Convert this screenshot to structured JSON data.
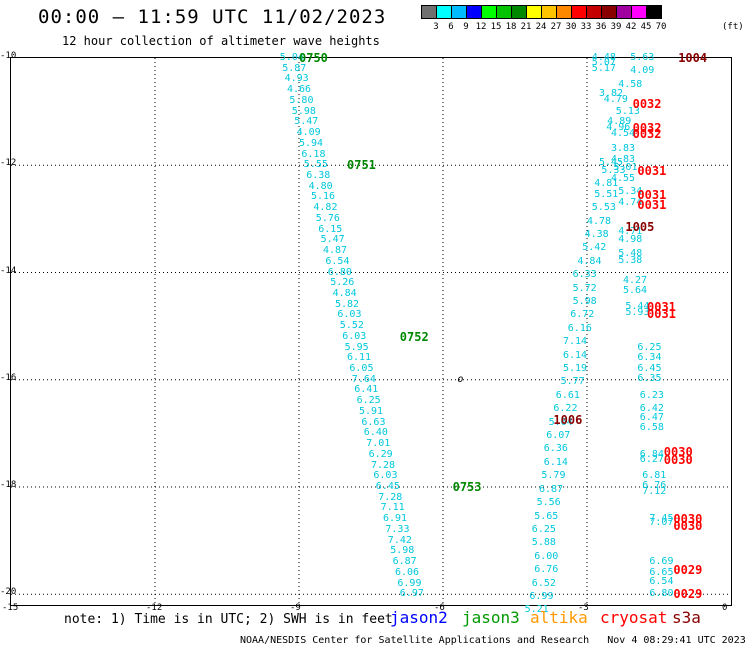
{
  "header": {
    "title": "00:00 – 11:59 UTC 11/02/2023",
    "subtitle": "12 hour collection of altimeter wave heights"
  },
  "colorbar": {
    "unit": "(ft)",
    "colors": [
      "#707070",
      "#00ffff",
      "#00bcff",
      "#0000ff",
      "#00ff00",
      "#00c400",
      "#008800",
      "#ffff00",
      "#ffc400",
      "#ff8800",
      "#ff0000",
      "#c40000",
      "#880000",
      "#a000a0",
      "#ff00ff",
      "#000000"
    ],
    "labels": [
      "3",
      "6",
      "9",
      "12",
      "15",
      "18",
      "21",
      "24",
      "27",
      "30",
      "33",
      "36",
      "39",
      "42",
      "45",
      "70"
    ]
  },
  "map": {
    "lon_ticks": [
      "-15",
      "-12",
      "-9",
      "-6",
      "-3",
      "0"
    ],
    "lat_ticks": [
      "-10",
      "-12",
      "-14",
      "-16",
      "-18",
      "-20"
    ],
    "island_label": "o",
    "observations": [
      {
        "lon": -9.4,
        "lat": -10.0,
        "v": "5.04",
        "c": "cyan"
      },
      {
        "lon": -9.35,
        "lat": -10.2,
        "v": "5.87",
        "c": "cyan"
      },
      {
        "lon": -9.3,
        "lat": -10.4,
        "v": "4.93",
        "c": "cyan"
      },
      {
        "lon": -9.25,
        "lat": -10.6,
        "v": "4.66",
        "c": "cyan"
      },
      {
        "lon": -9.2,
        "lat": -10.8,
        "v": "5.80",
        "c": "cyan"
      },
      {
        "lon": -9.15,
        "lat": -11.0,
        "v": "5.98",
        "c": "cyan"
      },
      {
        "lon": -9.1,
        "lat": -11.2,
        "v": "5.47",
        "c": "cyan"
      },
      {
        "lon": -9.05,
        "lat": -11.4,
        "v": "4.09",
        "c": "cyan"
      },
      {
        "lon": -9.0,
        "lat": -11.6,
        "v": "5.94",
        "c": "cyan"
      },
      {
        "lon": -8.95,
        "lat": -11.8,
        "v": "6.18",
        "c": "cyan"
      },
      {
        "lon": -8.9,
        "lat": -12.0,
        "v": "5.55",
        "c": "cyan"
      },
      {
        "lon": -8.85,
        "lat": -12.2,
        "v": "6.38",
        "c": "cyan"
      },
      {
        "lon": -8.8,
        "lat": -12.4,
        "v": "4.80",
        "c": "cyan"
      },
      {
        "lon": -8.75,
        "lat": -12.6,
        "v": "5.16",
        "c": "cyan"
      },
      {
        "lon": -8.7,
        "lat": -12.8,
        "v": "4.82",
        "c": "cyan"
      },
      {
        "lon": -8.65,
        "lat": -13.0,
        "v": "5.76",
        "c": "cyan"
      },
      {
        "lon": -8.6,
        "lat": -13.2,
        "v": "6.15",
        "c": "cyan"
      },
      {
        "lon": -8.55,
        "lat": -13.4,
        "v": "5.47",
        "c": "cyan"
      },
      {
        "lon": -8.5,
        "lat": -13.6,
        "v": "4.87",
        "c": "cyan"
      },
      {
        "lon": -8.45,
        "lat": -13.8,
        "v": "6.54",
        "c": "cyan"
      },
      {
        "lon": -8.4,
        "lat": -14.0,
        "v": "6.80",
        "c": "cyan"
      },
      {
        "lon": -8.35,
        "lat": -14.2,
        "v": "5.26",
        "c": "cyan"
      },
      {
        "lon": -8.3,
        "lat": -14.4,
        "v": "4.84",
        "c": "cyan"
      },
      {
        "lon": -8.25,
        "lat": -14.6,
        "v": "5.82",
        "c": "cyan"
      },
      {
        "lon": -8.2,
        "lat": -14.8,
        "v": "6.03",
        "c": "cyan"
      },
      {
        "lon": -8.15,
        "lat": -15.0,
        "v": "5.52",
        "c": "cyan"
      },
      {
        "lon": -8.1,
        "lat": -15.2,
        "v": "6.03",
        "c": "cyan"
      },
      {
        "lon": -8.05,
        "lat": -15.4,
        "v": "5.95",
        "c": "cyan"
      },
      {
        "lon": -8.0,
        "lat": -15.6,
        "v": "6.11",
        "c": "cyan"
      },
      {
        "lon": -7.95,
        "lat": -15.8,
        "v": "6.05",
        "c": "cyan"
      },
      {
        "lon": -7.9,
        "lat": -16.0,
        "v": "7.64",
        "c": "cyan"
      },
      {
        "lon": -7.85,
        "lat": -16.2,
        "v": "6.41",
        "c": "cyan"
      },
      {
        "lon": -7.8,
        "lat": -16.4,
        "v": "6.25",
        "c": "cyan"
      },
      {
        "lon": -7.75,
        "lat": -16.6,
        "v": "5.91",
        "c": "cyan"
      },
      {
        "lon": -7.7,
        "lat": -16.8,
        "v": "6.63",
        "c": "cyan"
      },
      {
        "lon": -7.65,
        "lat": -17.0,
        "v": "6.40",
        "c": "cyan"
      },
      {
        "lon": -7.6,
        "lat": -17.2,
        "v": "7.01",
        "c": "cyan"
      },
      {
        "lon": -7.55,
        "lat": -17.4,
        "v": "6.29",
        "c": "cyan"
      },
      {
        "lon": -7.5,
        "lat": -17.6,
        "v": "7.28",
        "c": "cyan"
      },
      {
        "lon": -7.45,
        "lat": -17.8,
        "v": "6.03",
        "c": "cyan"
      },
      {
        "lon": -7.4,
        "lat": -18.0,
        "v": "6.45",
        "c": "cyan"
      },
      {
        "lon": -7.35,
        "lat": -18.2,
        "v": "7.28",
        "c": "cyan"
      },
      {
        "lon": -7.3,
        "lat": -18.4,
        "v": "7.11",
        "c": "cyan"
      },
      {
        "lon": -7.25,
        "lat": -18.6,
        "v": "6.91",
        "c": "cyan"
      },
      {
        "lon": -7.2,
        "lat": -18.8,
        "v": "7.33",
        "c": "cyan"
      },
      {
        "lon": -7.15,
        "lat": -19.0,
        "v": "7.42",
        "c": "cyan"
      },
      {
        "lon": -7.1,
        "lat": -19.2,
        "v": "5.98",
        "c": "cyan"
      },
      {
        "lon": -7.05,
        "lat": -19.4,
        "v": "6.87",
        "c": "cyan"
      },
      {
        "lon": -7.0,
        "lat": -19.6,
        "v": "6.06",
        "c": "cyan"
      },
      {
        "lon": -6.95,
        "lat": -19.8,
        "v": "6.99",
        "c": "cyan"
      },
      {
        "lon": -6.9,
        "lat": -20.0,
        "v": "6.97",
        "c": "cyan"
      },
      {
        "lon": -2.9,
        "lat": -10.0,
        "v": "4.48",
        "c": "cyan"
      },
      {
        "lon": -2.9,
        "lat": -10.1,
        "v": "5.07",
        "c": "cyan"
      },
      {
        "lon": -2.9,
        "lat": -10.2,
        "v": "5.17",
        "c": "cyan"
      },
      {
        "lon": -2.1,
        "lat": -10.0,
        "v": "5.63",
        "c": "cyan"
      },
      {
        "lon": -2.1,
        "lat": -10.25,
        "v": "4.09",
        "c": "cyan"
      },
      {
        "lon": -2.35,
        "lat": -10.5,
        "v": "4.58",
        "c": "cyan"
      },
      {
        "lon": -2.75,
        "lat": -10.68,
        "v": "3.82",
        "c": "cyan"
      },
      {
        "lon": -2.65,
        "lat": -10.78,
        "v": "4.79",
        "c": "cyan"
      },
      {
        "lon": -2.4,
        "lat": -11.0,
        "v": "5.13",
        "c": "cyan"
      },
      {
        "lon": -2.58,
        "lat": -11.2,
        "v": "4.89",
        "c": "cyan"
      },
      {
        "lon": -2.6,
        "lat": -11.3,
        "v": "4.96",
        "c": "cyan"
      },
      {
        "lon": -2.5,
        "lat": -11.42,
        "v": "4.54",
        "c": "cyan"
      },
      {
        "lon": -2.5,
        "lat": -11.7,
        "v": "3.83",
        "c": "cyan"
      },
      {
        "lon": -2.5,
        "lat": -11.9,
        "v": "4.83",
        "c": "cyan"
      },
      {
        "lon": -2.75,
        "lat": -11.95,
        "v": "5.45",
        "c": "cyan"
      },
      {
        "lon": -2.7,
        "lat": -12.1,
        "v": "5.33",
        "c": "cyan"
      },
      {
        "lon": -2.45,
        "lat": -12.05,
        "v": "5.01",
        "c": "cyan"
      },
      {
        "lon": -2.5,
        "lat": -12.25,
        "v": "4.55",
        "c": "cyan"
      },
      {
        "lon": -2.85,
        "lat": -12.35,
        "v": "4.81",
        "c": "cyan"
      },
      {
        "lon": -2.85,
        "lat": -12.55,
        "v": "5.51",
        "c": "cyan"
      },
      {
        "lon": -2.35,
        "lat": -12.5,
        "v": "5.34",
        "c": "cyan"
      },
      {
        "lon": -2.35,
        "lat": -12.7,
        "v": "4.74",
        "c": "cyan"
      },
      {
        "lon": -2.9,
        "lat": -12.8,
        "v": "5.53",
        "c": "cyan"
      },
      {
        "lon": -3.0,
        "lat": -13.05,
        "v": "4.78",
        "c": "cyan"
      },
      {
        "lon": -2.35,
        "lat": -13.25,
        "v": "4.71",
        "c": "cyan"
      },
      {
        "lon": -2.35,
        "lat": -13.4,
        "v": "4.98",
        "c": "cyan"
      },
      {
        "lon": -3.05,
        "lat": -13.3,
        "v": "4.38",
        "c": "cyan"
      },
      {
        "lon": -3.1,
        "lat": -13.55,
        "v": "5.42",
        "c": "cyan"
      },
      {
        "lon": -2.35,
        "lat": -13.65,
        "v": "5.48",
        "c": "cyan"
      },
      {
        "lon": -2.35,
        "lat": -13.78,
        "v": "5.38",
        "c": "cyan"
      },
      {
        "lon": -3.2,
        "lat": -13.8,
        "v": "4.84",
        "c": "cyan"
      },
      {
        "lon": -3.3,
        "lat": -14.05,
        "v": "6.33",
        "c": "cyan"
      },
      {
        "lon": -2.25,
        "lat": -14.15,
        "v": "4.27",
        "c": "cyan"
      },
      {
        "lon": -3.3,
        "lat": -14.3,
        "v": "5.72",
        "c": "cyan"
      },
      {
        "lon": -2.25,
        "lat": -14.35,
        "v": "5.64",
        "c": "cyan"
      },
      {
        "lon": -3.3,
        "lat": -14.55,
        "v": "5.98",
        "c": "cyan"
      },
      {
        "lon": -2.2,
        "lat": -14.65,
        "v": "5.44",
        "c": "cyan"
      },
      {
        "lon": -2.2,
        "lat": -14.75,
        "v": "5.93",
        "c": "cyan"
      },
      {
        "lon": -3.35,
        "lat": -14.8,
        "v": "6.72",
        "c": "cyan"
      },
      {
        "lon": -3.4,
        "lat": -15.05,
        "v": "6.16",
        "c": "cyan"
      },
      {
        "lon": -3.5,
        "lat": -15.3,
        "v": "7.14",
        "c": "cyan"
      },
      {
        "lon": -1.95,
        "lat": -15.4,
        "v": "6.25",
        "c": "cyan"
      },
      {
        "lon": -3.5,
        "lat": -15.55,
        "v": "6.14",
        "c": "cyan"
      },
      {
        "lon": -1.95,
        "lat": -15.6,
        "v": "6.34",
        "c": "cyan"
      },
      {
        "lon": -1.95,
        "lat": -15.8,
        "v": "6.45",
        "c": "cyan"
      },
      {
        "lon": -3.5,
        "lat": -15.8,
        "v": "5.19",
        "c": "cyan"
      },
      {
        "lon": -1.95,
        "lat": -15.98,
        "v": "6.35",
        "c": "cyan"
      },
      {
        "lon": -3.55,
        "lat": -16.05,
        "v": "5.77",
        "c": "cyan"
      },
      {
        "lon": -3.65,
        "lat": -16.3,
        "v": "6.61",
        "c": "cyan"
      },
      {
        "lon": -1.9,
        "lat": -16.3,
        "v": "6.23",
        "c": "cyan"
      },
      {
        "lon": -3.7,
        "lat": -16.55,
        "v": "6.22",
        "c": "cyan"
      },
      {
        "lon": -1.9,
        "lat": -16.55,
        "v": "6.42",
        "c": "cyan"
      },
      {
        "lon": -1.9,
        "lat": -16.72,
        "v": "6.47",
        "c": "cyan"
      },
      {
        "lon": -3.8,
        "lat": -16.8,
        "v": "5.64",
        "c": "cyan"
      },
      {
        "lon": -1.9,
        "lat": -16.9,
        "v": "6.58",
        "c": "cyan"
      },
      {
        "lon": -3.85,
        "lat": -17.05,
        "v": "6.07",
        "c": "cyan"
      },
      {
        "lon": -3.9,
        "lat": -17.3,
        "v": "6.36",
        "c": "cyan"
      },
      {
        "lon": -1.9,
        "lat": -17.4,
        "v": "6.84",
        "c": "cyan"
      },
      {
        "lon": -1.9,
        "lat": -17.5,
        "v": "6.27",
        "c": "cyan"
      },
      {
        "lon": -3.9,
        "lat": -17.55,
        "v": "6.14",
        "c": "cyan"
      },
      {
        "lon": -3.95,
        "lat": -17.8,
        "v": "5.79",
        "c": "cyan"
      },
      {
        "lon": -1.85,
        "lat": -17.8,
        "v": "6.81",
        "c": "cyan"
      },
      {
        "lon": -1.85,
        "lat": -17.98,
        "v": "6.76",
        "c": "cyan"
      },
      {
        "lon": -4.0,
        "lat": -18.05,
        "v": "6.87",
        "c": "cyan"
      },
      {
        "lon": -1.85,
        "lat": -18.1,
        "v": "7.12",
        "c": "cyan"
      },
      {
        "lon": -4.05,
        "lat": -18.3,
        "v": "5.56",
        "c": "cyan"
      },
      {
        "lon": -4.1,
        "lat": -18.55,
        "v": "5.65",
        "c": "cyan"
      },
      {
        "lon": -1.7,
        "lat": -18.6,
        "v": "7.45",
        "c": "cyan"
      },
      {
        "lon": -1.7,
        "lat": -18.68,
        "v": "7.07",
        "c": "cyan"
      },
      {
        "lon": -4.15,
        "lat": -18.8,
        "v": "6.25",
        "c": "cyan"
      },
      {
        "lon": -4.15,
        "lat": -19.05,
        "v": "5.88",
        "c": "cyan"
      },
      {
        "lon": -4.1,
        "lat": -19.3,
        "v": "6.00",
        "c": "cyan"
      },
      {
        "lon": -1.7,
        "lat": -19.4,
        "v": "6.69",
        "c": "cyan"
      },
      {
        "lon": -4.1,
        "lat": -19.55,
        "v": "6.76",
        "c": "cyan"
      },
      {
        "lon": -1.7,
        "lat": -19.6,
        "v": "6.65",
        "c": "cyan"
      },
      {
        "lon": -1.7,
        "lat": -19.78,
        "v": "6.54",
        "c": "cyan"
      },
      {
        "lon": -4.15,
        "lat": -19.8,
        "v": "6.52",
        "c": "cyan"
      },
      {
        "lon": -4.2,
        "lat": -20.05,
        "v": "6.99",
        "c": "cyan"
      },
      {
        "lon": -1.7,
        "lat": -20.0,
        "v": "6.80",
        "c": "cyan"
      },
      {
        "lon": -4.3,
        "lat": -20.3,
        "v": "5.21",
        "c": "cyan"
      }
    ],
    "pass_labels": [
      {
        "lon": -9.0,
        "lat": -10.0,
        "t": "0750",
        "c": "green"
      },
      {
        "lon": -8.0,
        "lat": -12.0,
        "t": "0751",
        "c": "green"
      },
      {
        "lon": -6.9,
        "lat": -15.2,
        "t": "0752",
        "c": "green"
      },
      {
        "lon": -5.8,
        "lat": -18.0,
        "t": "0753",
        "c": "green"
      },
      {
        "lon": -1.1,
        "lat": -10.0,
        "t": "1004",
        "c": "darkred"
      },
      {
        "lon": -2.2,
        "lat": -13.15,
        "t": "1005",
        "c": "darkred"
      },
      {
        "lon": -3.7,
        "lat": -16.75,
        "t": "1006",
        "c": "darkred"
      },
      {
        "lon": -2.05,
        "lat": -10.85,
        "t": "0032",
        "c": "red"
      },
      {
        "lon": -2.05,
        "lat": -11.3,
        "t": "0032",
        "c": "red"
      },
      {
        "lon": -2.05,
        "lat": -11.42,
        "t": "0032",
        "c": "red"
      },
      {
        "lon": -1.95,
        "lat": -12.1,
        "t": "0031",
        "c": "red"
      },
      {
        "lon": -1.95,
        "lat": -12.55,
        "t": "0031",
        "c": "red"
      },
      {
        "lon": -1.95,
        "lat": -12.75,
        "t": "0031",
        "c": "red"
      },
      {
        "lon": -1.75,
        "lat": -14.65,
        "t": "0031",
        "c": "red"
      },
      {
        "lon": -1.75,
        "lat": -14.78,
        "t": "0031",
        "c": "red"
      },
      {
        "lon": -1.4,
        "lat": -17.35,
        "t": "0030",
        "c": "red"
      },
      {
        "lon": -1.4,
        "lat": -17.5,
        "t": "0030",
        "c": "red"
      },
      {
        "lon": -1.2,
        "lat": -18.6,
        "t": "0030",
        "c": "red"
      },
      {
        "lon": -1.2,
        "lat": -18.72,
        "t": "0030",
        "c": "red"
      },
      {
        "lon": -1.2,
        "lat": -19.55,
        "t": "0029",
        "c": "red"
      },
      {
        "lon": -1.2,
        "lat": -20.0,
        "t": "0029",
        "c": "red"
      }
    ]
  },
  "footer": {
    "note": "note: 1) Time is in UTC; 2) SWH is in feet",
    "legend": [
      {
        "label": "jason2",
        "color": "#0000ff"
      },
      {
        "label": "jason3",
        "color": "#009900"
      },
      {
        "label": "altika",
        "color": "#ff9900"
      },
      {
        "label": "cryosat",
        "color": "#ff0000"
      },
      {
        "label": "s3a",
        "color": "#880000"
      }
    ],
    "credit": "NOAA/NESDIS Center for Satellite Applications and Research",
    "timestamp": "Nov  4 08:29:41 UTC 2023"
  }
}
